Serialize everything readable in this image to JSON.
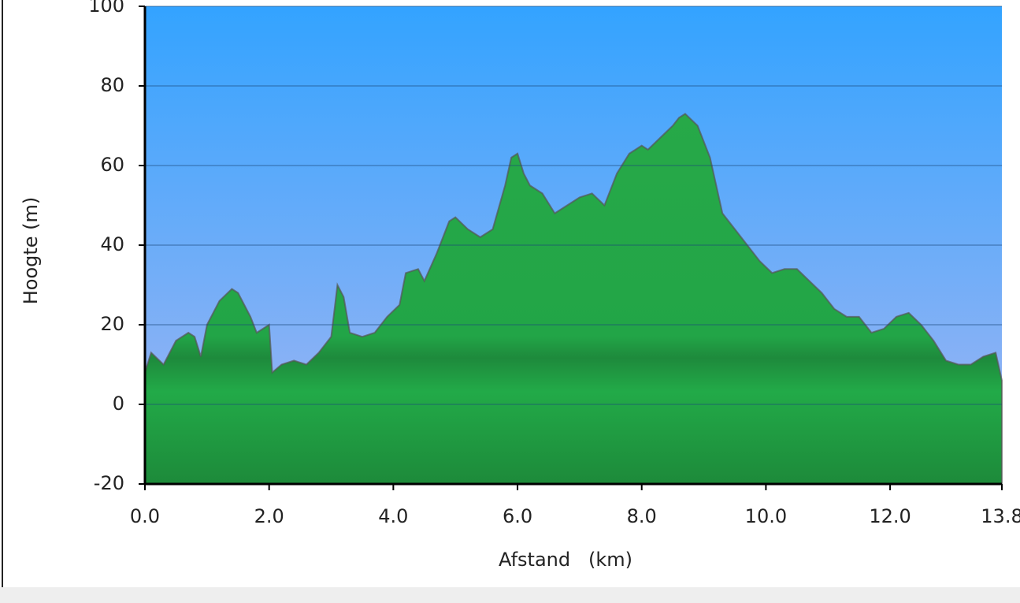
{
  "chart_data": {
    "type": "area",
    "xlabel": "Afstand   (km)",
    "ylabel": "Hoogte (m)",
    "x": [
      0,
      0.1,
      0.3,
      0.5,
      0.7,
      0.8,
      0.9,
      1.0,
      1.2,
      1.4,
      1.5,
      1.7,
      1.8,
      2.0,
      2.05,
      2.2,
      2.4,
      2.6,
      2.8,
      3.0,
      3.1,
      3.2,
      3.3,
      3.5,
      3.7,
      3.9,
      4.1,
      4.2,
      4.4,
      4.5,
      4.7,
      4.9,
      5.0,
      5.2,
      5.4,
      5.6,
      5.8,
      5.9,
      6.0,
      6.1,
      6.2,
      6.4,
      6.6,
      6.8,
      7.0,
      7.2,
      7.4,
      7.6,
      7.8,
      8.0,
      8.1,
      8.3,
      8.5,
      8.6,
      8.7,
      8.9,
      9.1,
      9.3,
      9.5,
      9.7,
      9.9,
      10.1,
      10.3,
      10.5,
      10.7,
      10.9,
      11.1,
      11.3,
      11.5,
      11.7,
      11.9,
      12.1,
      12.3,
      12.5,
      12.7,
      12.9,
      13.1,
      13.3,
      13.5,
      13.7,
      13.8
    ],
    "values": [
      8,
      13,
      10,
      16,
      18,
      17,
      12,
      20,
      26,
      29,
      28,
      22,
      18,
      20,
      8,
      10,
      11,
      10,
      13,
      17,
      30,
      27,
      18,
      17,
      18,
      22,
      25,
      33,
      34,
      31,
      38,
      46,
      47,
      44,
      42,
      44,
      55,
      62,
      63,
      58,
      55,
      53,
      48,
      50,
      52,
      53,
      50,
      58,
      63,
      65,
      64,
      67,
      70,
      72,
      73,
      70,
      62,
      48,
      44,
      40,
      36,
      33,
      34,
      34,
      31,
      28,
      24,
      22,
      22,
      18,
      19,
      22,
      23,
      20,
      16,
      11,
      10,
      10,
      12,
      13,
      6
    ],
    "color": "#22aa44",
    "xlim": [
      0,
      13.8
    ],
    "xticks": [
      {
        "value": 0,
        "label": "0.0"
      },
      {
        "value": 2,
        "label": "2.0"
      },
      {
        "value": 4,
        "label": "4.0"
      },
      {
        "value": 6,
        "label": "6.0"
      },
      {
        "value": 8,
        "label": "8.0"
      },
      {
        "value": 10,
        "label": "10.0"
      },
      {
        "value": 12,
        "label": "12.0"
      },
      13.8
    ],
    "ylim": [
      -20,
      100
    ],
    "yticks": [
      -20,
      0,
      20,
      40,
      60,
      80,
      100
    ],
    "grid": true
  }
}
